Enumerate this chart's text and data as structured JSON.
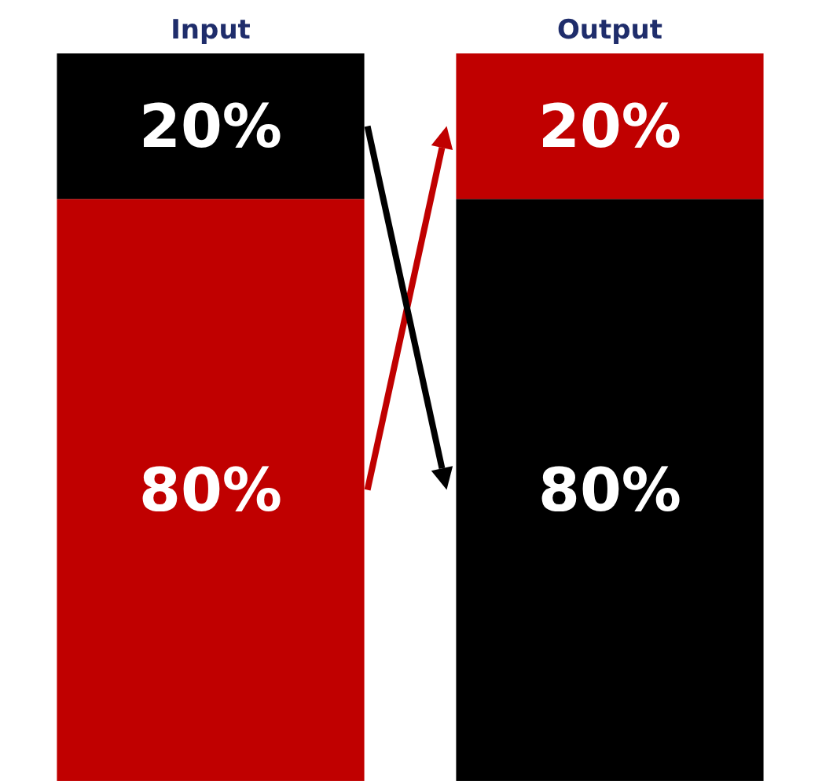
{
  "chart_data": {
    "type": "bar",
    "stacked": true,
    "categories": [
      "Input",
      "Output"
    ],
    "series": [
      {
        "colors": [
          "#c00000",
          "#000000"
        ],
        "values": [
          80,
          80
        ],
        "value_labels": [
          "80%",
          "80%"
        ]
      },
      {
        "colors": [
          "#000000",
          "#c00000"
        ],
        "values": [
          20,
          20
        ],
        "value_labels": [
          "20%",
          "20%"
        ]
      }
    ]
  }
}
